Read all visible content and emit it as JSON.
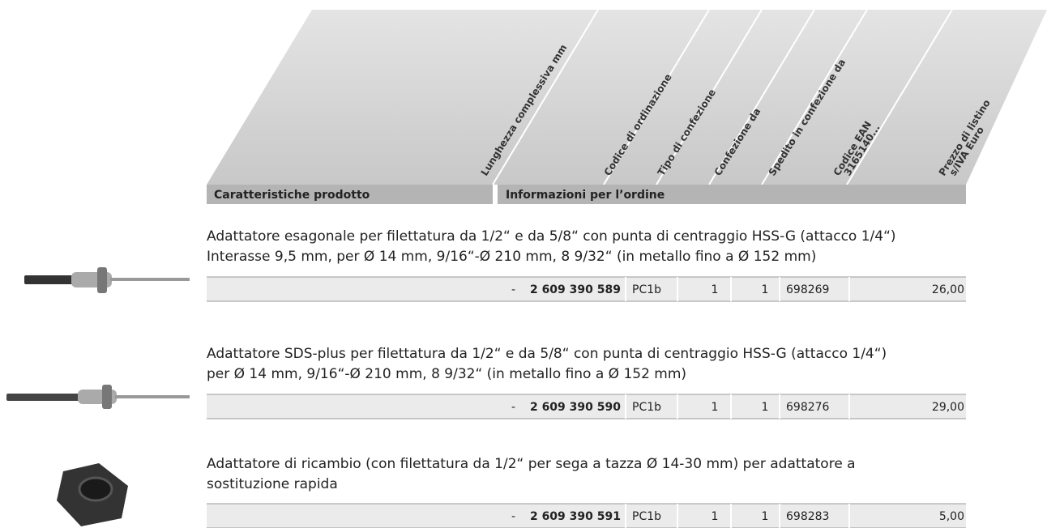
{
  "header": {
    "columns": [
      [
        "Lunghezza complessiva mm"
      ],
      [
        "Codice di ordinazione"
      ],
      [
        "Tipo di confezione"
      ],
      [
        "Confezione da"
      ],
      [
        "Spedito in confezione da"
      ],
      [
        "Codice EAN",
        "3165140..."
      ],
      [
        "Prezzo di listino",
        "s/IVA Euro"
      ]
    ],
    "sections": [
      "Caratteristiche prodotto",
      "Informazioni per l’ordine"
    ]
  },
  "products": [
    {
      "description": [
        "Adattatore esagonale per filettatura da 1/2“ e da 5/8“ con punta di centraggio HSS-G (attacco 1/4“)",
        "Interasse 9,5 mm, per Ø 14 mm, 9/16“-Ø 210 mm, 8 9/32“ (in metallo fino a Ø 152 mm)"
      ],
      "row": [
        "-",
        "2 609 390 589",
        "PC1b",
        "1",
        "1",
        "698269",
        "26,00"
      ]
    },
    {
      "description": [
        "Adattatore SDS-plus per filettatura da 1/2“ e da 5/8“ con punta di centraggio HSS-G (attacco 1/4“)",
        "per Ø 14 mm, 9/16“-Ø 210 mm, 8 9/32“ (in metallo fino a Ø 152 mm)"
      ],
      "row": [
        "-",
        "2 609 390 590",
        "PC1b",
        "1",
        "1",
        "698276",
        "29,00"
      ]
    },
    {
      "description": [
        "Adattatore di ricambio (con filettatura da 1/2“ per sega a tazza Ø 14-30 mm) per adattatore a",
        "sostituzione rapida"
      ],
      "row": [
        "-",
        "2 609 390 591",
        "PC1b",
        "1",
        "1",
        "698283",
        "5,00"
      ]
    }
  ]
}
